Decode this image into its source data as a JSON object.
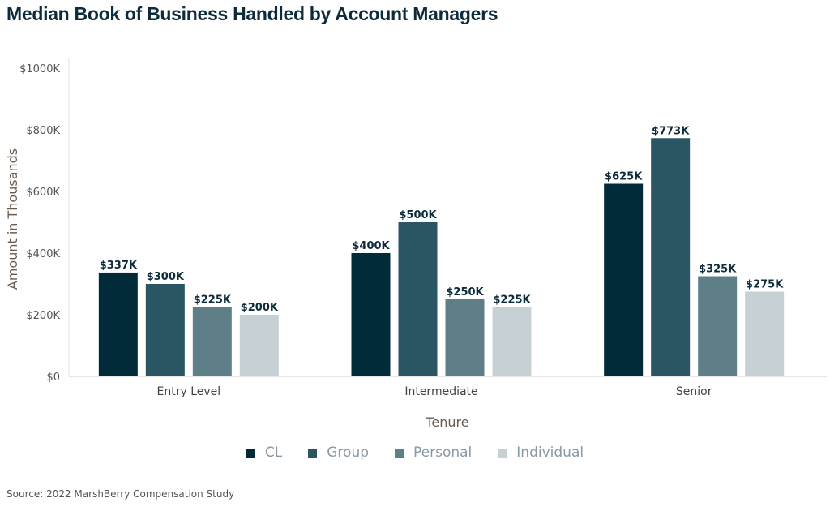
{
  "chart_data": {
    "type": "bar",
    "title": "Median Book of Business Handled by Account Managers",
    "xlabel": "Tenure",
    "ylabel": "Amount in Thousands",
    "categories": [
      "Entry Level",
      "Intermediate",
      "Senior"
    ],
    "ylim": [
      0,
      1000
    ],
    "yticks": [
      {
        "value": 0,
        "label": "$0"
      },
      {
        "value": 200,
        "label": "$200K"
      },
      {
        "value": 400,
        "label": "$400K"
      },
      {
        "value": 600,
        "label": "$600K"
      },
      {
        "value": 800,
        "label": "$800K"
      },
      {
        "value": 1000,
        "label": "$1000K"
      }
    ],
    "series": [
      {
        "name": "CL",
        "color": "#022b3a",
        "values": [
          337,
          400,
          625
        ],
        "labels": [
          "$337K",
          "$400K",
          "$625K"
        ]
      },
      {
        "name": "Group",
        "color": "#2a5563",
        "values": [
          300,
          500,
          773
        ],
        "labels": [
          "$300K",
          "$500K",
          "$773K"
        ]
      },
      {
        "name": "Personal",
        "color": "#5e7f88",
        "values": [
          225,
          250,
          325
        ],
        "labels": [
          "$225K",
          "$250K",
          "$325K"
        ]
      },
      {
        "name": "Individual",
        "color": "#c7d1d5",
        "values": [
          200,
          225,
          275
        ],
        "labels": [
          "$200K",
          "$225K",
          "$275K"
        ]
      }
    ],
    "legend_position": "bottom",
    "grid": false
  },
  "source": "Source: 2022 MarshBerry Compensation Study"
}
